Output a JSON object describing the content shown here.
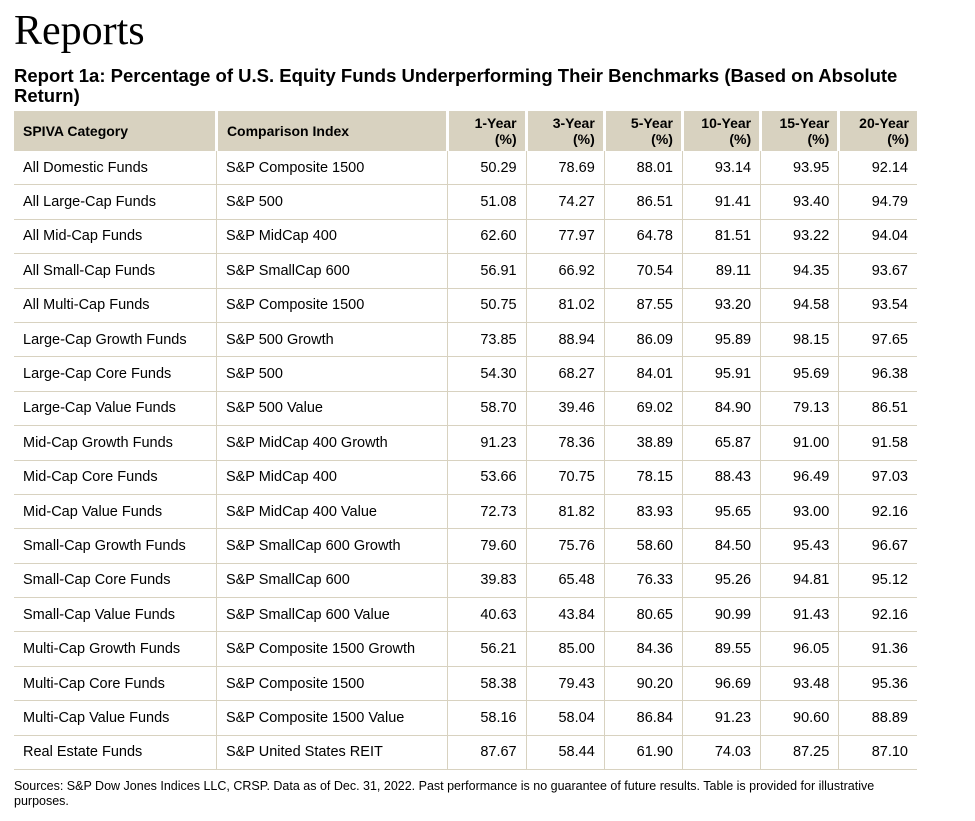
{
  "heading": "Reports",
  "report_title": "Report 1a: Percentage of U.S. Equity Funds Underperforming Their Benchmarks (Based on Absolute Return)",
  "table": {
    "headers": [
      {
        "line1": "SPIVA Category",
        "line2": ""
      },
      {
        "line1": "Comparison Index",
        "line2": ""
      },
      {
        "line1": "1-Year",
        "line2": "(%)"
      },
      {
        "line1": "3-Year",
        "line2": "(%)"
      },
      {
        "line1": "5-Year",
        "line2": "(%)"
      },
      {
        "line1": "10-Year",
        "line2": "(%)"
      },
      {
        "line1": "15-Year",
        "line2": "(%)"
      },
      {
        "line1": "20-Year",
        "line2": "(%)"
      }
    ],
    "rows": [
      {
        "category": "All Domestic Funds",
        "index": "S&P Composite 1500",
        "values": [
          "50.29",
          "78.69",
          "88.01",
          "93.14",
          "93.95",
          "92.14"
        ]
      },
      {
        "category": "All Large-Cap Funds",
        "index": "S&P 500",
        "values": [
          "51.08",
          "74.27",
          "86.51",
          "91.41",
          "93.40",
          "94.79"
        ]
      },
      {
        "category": "All Mid-Cap Funds",
        "index": "S&P MidCap 400",
        "values": [
          "62.60",
          "77.97",
          "64.78",
          "81.51",
          "93.22",
          "94.04"
        ]
      },
      {
        "category": "All Small-Cap Funds",
        "index": "S&P SmallCap 600",
        "values": [
          "56.91",
          "66.92",
          "70.54",
          "89.11",
          "94.35",
          "93.67"
        ]
      },
      {
        "category": "All Multi-Cap Funds",
        "index": "S&P Composite 1500",
        "values": [
          "50.75",
          "81.02",
          "87.55",
          "93.20",
          "94.58",
          "93.54"
        ]
      },
      {
        "category": "Large-Cap Growth Funds",
        "index": "S&P 500 Growth",
        "values": [
          "73.85",
          "88.94",
          "86.09",
          "95.89",
          "98.15",
          "97.65"
        ]
      },
      {
        "category": "Large-Cap Core Funds",
        "index": "S&P 500",
        "values": [
          "54.30",
          "68.27",
          "84.01",
          "95.91",
          "95.69",
          "96.38"
        ]
      },
      {
        "category": "Large-Cap Value Funds",
        "index": "S&P 500 Value",
        "values": [
          "58.70",
          "39.46",
          "69.02",
          "84.90",
          "79.13",
          "86.51"
        ]
      },
      {
        "category": "Mid-Cap Growth Funds",
        "index": "S&P MidCap 400 Growth",
        "values": [
          "91.23",
          "78.36",
          "38.89",
          "65.87",
          "91.00",
          "91.58"
        ]
      },
      {
        "category": "Mid-Cap Core Funds",
        "index": "S&P MidCap 400",
        "values": [
          "53.66",
          "70.75",
          "78.15",
          "88.43",
          "96.49",
          "97.03"
        ]
      },
      {
        "category": "Mid-Cap Value Funds",
        "index": "S&P MidCap 400 Value",
        "values": [
          "72.73",
          "81.82",
          "83.93",
          "95.65",
          "93.00",
          "92.16"
        ]
      },
      {
        "category": "Small-Cap Growth Funds",
        "index": "S&P SmallCap 600 Growth",
        "values": [
          "79.60",
          "75.76",
          "58.60",
          "84.50",
          "95.43",
          "96.67"
        ]
      },
      {
        "category": "Small-Cap Core Funds",
        "index": "S&P SmallCap 600",
        "values": [
          "39.83",
          "65.48",
          "76.33",
          "95.26",
          "94.81",
          "95.12"
        ]
      },
      {
        "category": "Small-Cap Value Funds",
        "index": "S&P SmallCap 600 Value",
        "values": [
          "40.63",
          "43.84",
          "80.65",
          "90.99",
          "91.43",
          "92.16"
        ]
      },
      {
        "category": "Multi-Cap Growth Funds",
        "index": "S&P Composite 1500 Growth",
        "values": [
          "56.21",
          "85.00",
          "84.36",
          "89.55",
          "96.05",
          "91.36"
        ]
      },
      {
        "category": "Multi-Cap Core Funds",
        "index": "S&P Composite 1500",
        "values": [
          "58.38",
          "79.43",
          "90.20",
          "96.69",
          "93.48",
          "95.36"
        ]
      },
      {
        "category": "Multi-Cap Value Funds",
        "index": "S&P Composite 1500 Value",
        "values": [
          "58.16",
          "58.04",
          "86.84",
          "91.23",
          "90.60",
          "88.89"
        ]
      },
      {
        "category": "Real Estate Funds",
        "index": "S&P United States REIT",
        "values": [
          "87.67",
          "58.44",
          "61.90",
          "74.03",
          "87.25",
          "87.10"
        ]
      }
    ]
  },
  "footnote": "Sources: S&P Dow Jones Indices LLC, CRSP. Data as of Dec. 31, 2022. Past performance is no guarantee of future results. Table is provided for illustrative purposes.",
  "colors": {
    "header_background": "#d8d2c0",
    "rule_color": "#d8d2c0"
  }
}
